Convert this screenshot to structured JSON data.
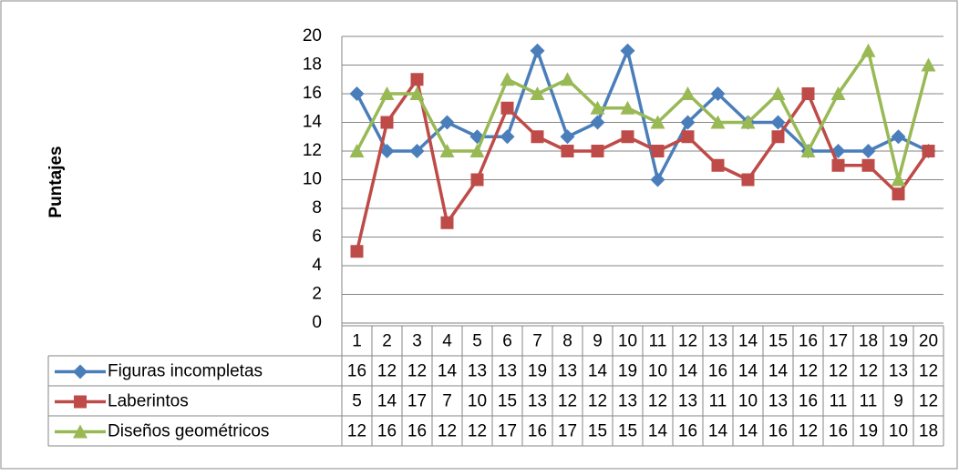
{
  "chart_data": {
    "type": "line",
    "y_label": "Puntajes",
    "categories": [
      "1",
      "2",
      "3",
      "4",
      "5",
      "6",
      "7",
      "8",
      "9",
      "10",
      "11",
      "12",
      "13",
      "14",
      "15",
      "16",
      "17",
      "18",
      "19",
      "20"
    ],
    "series": [
      {
        "name": "Figuras incompletas",
        "color": "#4a7ebb",
        "marker": "diamond",
        "values": [
          16,
          12,
          12,
          14,
          13,
          13,
          19,
          13,
          14,
          19,
          10,
          14,
          16,
          14,
          14,
          12,
          12,
          12,
          13,
          12
        ]
      },
      {
        "name": "Laberintos",
        "color": "#be4b48",
        "marker": "square",
        "values": [
          5,
          14,
          17,
          7,
          10,
          15,
          13,
          12,
          12,
          13,
          12,
          13,
          11,
          10,
          13,
          16,
          11,
          11,
          9,
          12
        ]
      },
      {
        "name": "Diseños geométricos",
        "color": "#98b954",
        "marker": "triangle",
        "values": [
          12,
          16,
          16,
          12,
          12,
          17,
          16,
          17,
          15,
          15,
          14,
          16,
          14,
          14,
          16,
          12,
          16,
          19,
          10,
          18
        ]
      }
    ],
    "ylim": [
      0,
      20
    ],
    "yticks": [
      0,
      2,
      4,
      6,
      8,
      10,
      12,
      14,
      16,
      18,
      20
    ],
    "grid": true
  }
}
